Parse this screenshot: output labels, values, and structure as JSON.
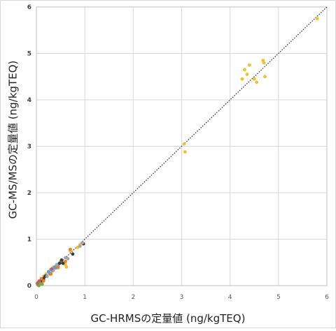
{
  "chart_data": {
    "type": "scatter",
    "title": "",
    "xlabel": "GC-HRMSの定量値 (ng/kgTEQ)",
    "ylabel": "GC-MS/MSの定量値 (ng/kgTEQ)",
    "xlim": [
      0,
      6
    ],
    "ylim": [
      0,
      6
    ],
    "xticks": [
      "0",
      "1",
      "2",
      "3",
      "4",
      "5",
      "6"
    ],
    "yticks": [
      "0",
      "1",
      "2",
      "3",
      "4",
      "5",
      "6"
    ],
    "grid": true,
    "legend": "none",
    "reference_line": {
      "style": "dotted",
      "from": [
        0,
        0
      ],
      "to": [
        6,
        6
      ],
      "color": "#333333"
    },
    "series": [
      {
        "color": "#f5c02a",
        "points": [
          [
            5.8,
            5.75
          ],
          [
            4.25,
            4.45
          ],
          [
            4.3,
            4.65
          ],
          [
            4.35,
            4.55
          ],
          [
            4.4,
            4.75
          ],
          [
            4.5,
            4.45
          ],
          [
            4.55,
            4.38
          ],
          [
            4.68,
            4.85
          ],
          [
            4.7,
            4.8
          ],
          [
            4.72,
            4.5
          ],
          [
            3.05,
            3.05
          ],
          [
            3.07,
            2.88
          ],
          [
            0.05,
            0.05
          ],
          [
            0.1,
            0.12
          ],
          [
            0.15,
            0.2
          ],
          [
            0.2,
            0.25
          ],
          [
            0.25,
            0.3
          ],
          [
            0.3,
            0.28
          ],
          [
            0.35,
            0.4
          ],
          [
            0.4,
            0.42
          ],
          [
            0.45,
            0.38
          ],
          [
            0.5,
            0.52
          ],
          [
            0.55,
            0.5
          ],
          [
            0.6,
            0.45
          ],
          [
            0.62,
            0.4
          ],
          [
            0.7,
            0.75
          ],
          [
            0.85,
            0.82
          ],
          [
            0.9,
            0.88
          ],
          [
            0.08,
            0.02
          ],
          [
            0.12,
            0.08
          ]
        ]
      },
      {
        "color": "#5b9bd5",
        "points": [
          [
            0.2,
            0.22
          ],
          [
            0.25,
            0.3
          ],
          [
            0.3,
            0.35
          ],
          [
            0.33,
            0.32
          ],
          [
            0.38,
            0.4
          ],
          [
            0.4,
            0.38
          ],
          [
            0.45,
            0.46
          ],
          [
            0.5,
            0.5
          ],
          [
            0.28,
            0.25
          ]
        ]
      },
      {
        "color": "#3b3b3b",
        "points": [
          [
            0.05,
            0.08
          ],
          [
            0.1,
            0.1
          ],
          [
            0.15,
            0.15
          ],
          [
            0.48,
            0.48
          ],
          [
            0.52,
            0.55
          ],
          [
            0.75,
            0.68
          ],
          [
            0.97,
            0.9
          ],
          [
            0.18,
            0.2
          ],
          [
            0.55,
            0.48
          ]
        ]
      },
      {
        "color": "#a5a5a5",
        "points": [
          [
            0.6,
            0.6
          ],
          [
            0.65,
            0.58
          ],
          [
            0.9,
            0.85
          ],
          [
            0.22,
            0.2
          ],
          [
            0.35,
            0.33
          ],
          [
            0.42,
            0.45
          ],
          [
            0.95,
            0.92
          ]
        ]
      },
      {
        "color": "#ed7d31",
        "points": [
          [
            0.1,
            0.15
          ],
          [
            0.3,
            0.25
          ],
          [
            0.45,
            0.4
          ],
          [
            0.7,
            0.78
          ],
          [
            0.15,
            0.1
          ],
          [
            0.6,
            0.52
          ]
        ]
      },
      {
        "color": "#70ad47",
        "points": [
          [
            0.05,
            0.0
          ],
          [
            0.08,
            0.05
          ],
          [
            0.12,
            0.03
          ],
          [
            0.03,
            0.02
          ]
        ]
      },
      {
        "color": "#c06060",
        "points": [
          [
            0.02,
            0.05
          ],
          [
            0.06,
            0.1
          ],
          [
            0.32,
            0.36
          ]
        ]
      }
    ]
  }
}
